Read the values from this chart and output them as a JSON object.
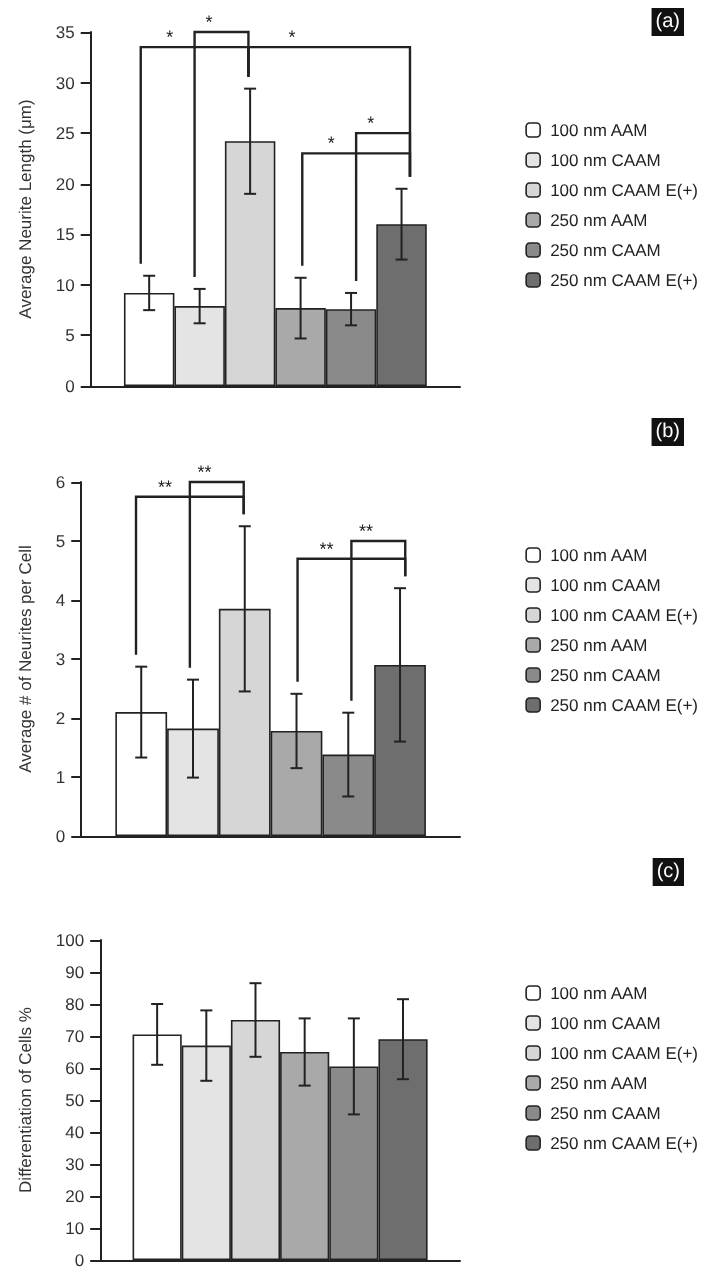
{
  "chart_data": [
    {
      "type": "bar",
      "ylabel": "Average Neurite Length (μm)",
      "categories": [
        null
      ],
      "ylim": [
        0,
        35
      ],
      "yticks": [
        0,
        5,
        10,
        15,
        20,
        25,
        30,
        35
      ],
      "legend": "right",
      "grid": false,
      "tick_labels": "y",
      "annotations": [
        "(a)",
        "*",
        "*",
        "*",
        "*",
        "*"
      ],
      "series": [
        {
          "name": "100 nm AAM",
          "color": "#ffffff",
          "values": [
            9.2
          ],
          "errors": [
            1.7
          ]
        },
        {
          "name": "100 nm CAAM",
          "color": "#e4e4e4",
          "values": [
            7.9
          ],
          "errors": [
            1.7
          ]
        },
        {
          "name": "100 nm CAAM E(+)",
          "color": "#d6d6d6",
          "values": [
            24.2
          ],
          "errors": [
            5.2
          ]
        },
        {
          "name": "250 nm AAM",
          "color": "#a9a9a9",
          "values": [
            7.7
          ],
          "errors": [
            3.0
          ]
        },
        {
          "name": "250 nm CAAM",
          "color": "#8a8a8a",
          "values": [
            7.6
          ],
          "errors": [
            1.6
          ]
        },
        {
          "name": "250 nm CAAM E(+)",
          "color": "#6e6e6e",
          "values": [
            16.0
          ],
          "errors": [
            3.5
          ]
        }
      ]
    },
    {
      "type": "bar",
      "ylabel": "Average # of Neurites per Cell",
      "categories": [
        null
      ],
      "ylim": [
        0,
        6
      ],
      "yticks": [
        0,
        1,
        2,
        3,
        4,
        5,
        6
      ],
      "legend": "right",
      "grid": false,
      "tick_labels": "y",
      "annotations": [
        "(b)",
        "**",
        "**",
        "**",
        "**"
      ],
      "series": [
        {
          "name": "100 nm AAM",
          "color": "#ffffff",
          "values": [
            2.1
          ],
          "errors": [
            0.77
          ]
        },
        {
          "name": "100 nm CAAM",
          "color": "#e4e4e4",
          "values": [
            1.82
          ],
          "errors": [
            0.83
          ]
        },
        {
          "name": "100 nm CAAM E(+)",
          "color": "#d6d6d6",
          "values": [
            3.85
          ],
          "errors": [
            1.4
          ]
        },
        {
          "name": "250 nm AAM",
          "color": "#a9a9a9",
          "values": [
            1.78
          ],
          "errors": [
            0.63
          ]
        },
        {
          "name": "250 nm CAAM",
          "color": "#8a8a8a",
          "values": [
            1.38
          ],
          "errors": [
            0.71
          ]
        },
        {
          "name": "250 nm CAAM E(+)",
          "color": "#6e6e6e",
          "values": [
            2.9
          ],
          "errors": [
            1.3
          ]
        }
      ]
    },
    {
      "type": "bar",
      "ylabel": "Differentiation of Cells %",
      "categories": [
        null
      ],
      "ylim": [
        0,
        100
      ],
      "yticks": [
        0,
        10,
        20,
        30,
        40,
        50,
        60,
        70,
        80,
        90,
        100
      ],
      "legend": "right",
      "grid": false,
      "tick_labels": "y",
      "annotations": [
        "(c)"
      ],
      "series": [
        {
          "name": "100 nm AAM",
          "color": "#ffffff",
          "values": [
            70.5
          ],
          "errors": [
            9.5
          ]
        },
        {
          "name": "100 nm CAAM",
          "color": "#e4e4e4",
          "values": [
            67
          ],
          "errors": [
            11
          ]
        },
        {
          "name": "100 nm CAAM E(+)",
          "color": "#d6d6d6",
          "values": [
            75
          ],
          "errors": [
            11.5
          ]
        },
        {
          "name": "250 nm AAM",
          "color": "#a9a9a9",
          "values": [
            65
          ],
          "errors": [
            10.5
          ]
        },
        {
          "name": "250 nm CAAM",
          "color": "#8a8a8a",
          "values": [
            60.5
          ],
          "errors": [
            15
          ]
        },
        {
          "name": "250 nm CAAM E(+)",
          "color": "#6e6e6e",
          "values": [
            69
          ],
          "errors": [
            12.5
          ]
        }
      ]
    }
  ]
}
